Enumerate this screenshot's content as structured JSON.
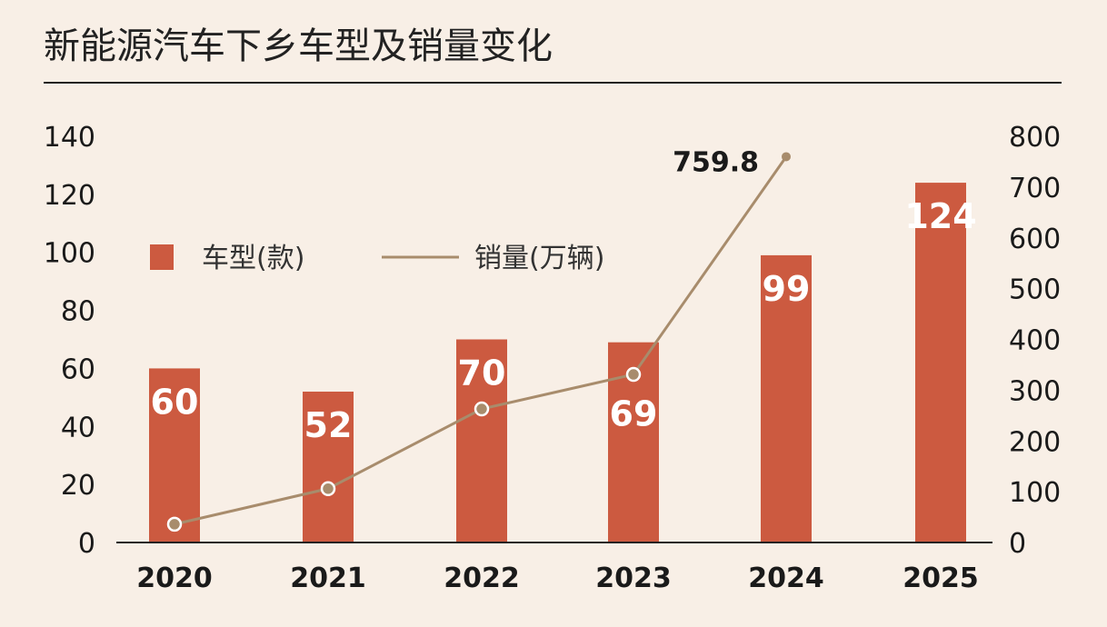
{
  "chart_data": {
    "type": "bar+line",
    "title": "新能源汽车下乡车型及销量变化",
    "categories": [
      "2020",
      "2021",
      "2022",
      "2023",
      "2024",
      "2025"
    ],
    "series": [
      {
        "name": "车型(款)",
        "type": "bar",
        "axis": "left",
        "values": [
          60,
          52,
          70,
          69,
          99,
          124
        ],
        "color": "#cc5a40"
      },
      {
        "name": "销量(万辆)",
        "type": "line",
        "axis": "right",
        "values": [
          36,
          106,
          263,
          331,
          759.8,
          null
        ],
        "color": "#a88c6c"
      }
    ],
    "annotations": [
      {
        "category": "2024",
        "text": "759.8"
      }
    ],
    "left_axis": {
      "ylim": [
        0,
        140
      ],
      "ticks": [
        "0",
        "20",
        "40",
        "60",
        "80",
        "100",
        "120",
        "140"
      ]
    },
    "right_axis": {
      "ylim": [
        0,
        800
      ],
      "ticks": [
        "0",
        "100",
        "200",
        "300",
        "400",
        "500",
        "600",
        "700",
        "800"
      ]
    },
    "legend_placement": "top-left inside",
    "grid": false,
    "background": "#f8efe6"
  }
}
